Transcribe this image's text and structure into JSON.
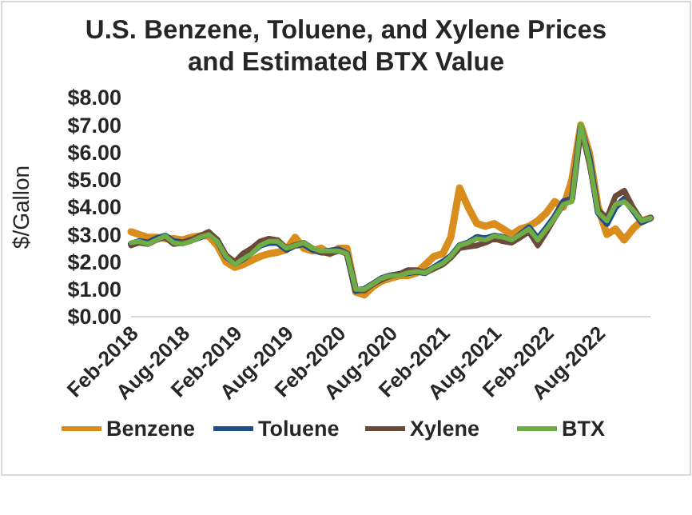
{
  "chart_data": {
    "type": "line",
    "title": "U.S. Benzene, Toluene, and Xylene Prices\nand Estimated BTX Value",
    "ylabel": "$/Gallon",
    "x": [
      "2018-02",
      "2018-03",
      "2018-04",
      "2018-05",
      "2018-06",
      "2018-07",
      "2018-08",
      "2018-09",
      "2018-10",
      "2018-11",
      "2018-12",
      "2019-01",
      "2019-02",
      "2019-03",
      "2019-04",
      "2019-05",
      "2019-06",
      "2019-07",
      "2019-08",
      "2019-09",
      "2019-10",
      "2019-11",
      "2019-12",
      "2020-01",
      "2020-02",
      "2020-03",
      "2020-04",
      "2020-05",
      "2020-06",
      "2020-07",
      "2020-08",
      "2020-09",
      "2020-10",
      "2020-11",
      "2020-12",
      "2021-01",
      "2021-02",
      "2021-03",
      "2021-04",
      "2021-05",
      "2021-06",
      "2021-07",
      "2021-08",
      "2021-09",
      "2021-10",
      "2021-11",
      "2021-12",
      "2022-01",
      "2022-02",
      "2022-03",
      "2022-04",
      "2022-05",
      "2022-06",
      "2022-07",
      "2022-08",
      "2022-09",
      "2022-10",
      "2022-11",
      "2022-12",
      "2023-01",
      "2023-02"
    ],
    "series": [
      {
        "name": "Benzene",
        "color": "#d98d1c",
        "values": [
          3.1,
          3.0,
          2.9,
          2.9,
          2.85,
          2.85,
          2.8,
          2.9,
          2.95,
          2.95,
          2.6,
          2.0,
          1.8,
          1.9,
          2.05,
          2.2,
          2.3,
          2.35,
          2.45,
          2.9,
          2.5,
          2.4,
          2.5,
          2.3,
          2.5,
          2.5,
          0.9,
          0.8,
          1.1,
          1.3,
          1.4,
          1.5,
          1.5,
          1.6,
          1.9,
          2.2,
          2.3,
          2.9,
          4.7,
          4.0,
          3.4,
          3.3,
          3.4,
          3.2,
          3.0,
          3.2,
          3.3,
          3.5,
          3.8,
          4.2,
          4.0,
          5.0,
          7.0,
          6.0,
          4.0,
          3.0,
          3.2,
          2.8,
          3.2,
          3.5,
          3.6
        ]
      },
      {
        "name": "Toluene",
        "color": "#1f4e8c",
        "values": [
          2.65,
          2.75,
          2.7,
          2.85,
          2.95,
          2.75,
          2.7,
          2.8,
          2.9,
          3.05,
          2.8,
          2.2,
          1.95,
          2.1,
          2.35,
          2.6,
          2.7,
          2.7,
          2.45,
          2.6,
          2.65,
          2.45,
          2.35,
          2.4,
          2.45,
          2.3,
          0.95,
          1.0,
          1.2,
          1.4,
          1.5,
          1.55,
          1.6,
          1.65,
          1.6,
          1.8,
          2.0,
          2.2,
          2.6,
          2.7,
          2.9,
          2.85,
          2.95,
          2.9,
          2.75,
          3.0,
          3.25,
          2.85,
          3.25,
          3.65,
          4.2,
          4.3,
          6.9,
          5.8,
          3.8,
          3.4,
          4.0,
          4.3,
          3.9,
          3.45,
          3.6
        ]
      },
      {
        "name": "Xylene",
        "color": "#6b4a3a",
        "values": [
          2.6,
          2.7,
          2.65,
          2.8,
          2.9,
          2.65,
          2.7,
          2.8,
          2.95,
          3.1,
          2.8,
          2.25,
          2.0,
          2.3,
          2.5,
          2.75,
          2.85,
          2.8,
          2.5,
          2.6,
          2.7,
          2.5,
          2.35,
          2.3,
          2.4,
          2.3,
          1.0,
          0.95,
          1.2,
          1.35,
          1.5,
          1.55,
          1.7,
          1.7,
          1.6,
          1.75,
          1.9,
          2.15,
          2.5,
          2.55,
          2.6,
          2.7,
          2.85,
          2.75,
          2.7,
          2.9,
          3.1,
          2.6,
          3.1,
          3.6,
          4.1,
          4.3,
          6.9,
          5.6,
          3.9,
          3.6,
          4.4,
          4.6,
          4.0,
          3.5,
          3.6
        ]
      },
      {
        "name": "BTX",
        "color": "#70ad47",
        "values": [
          2.7,
          2.75,
          2.65,
          2.8,
          2.95,
          2.7,
          2.65,
          2.75,
          2.9,
          3.0,
          2.75,
          2.2,
          1.9,
          2.1,
          2.3,
          2.6,
          2.75,
          2.75,
          2.5,
          2.6,
          2.7,
          2.5,
          2.4,
          2.4,
          2.4,
          2.3,
          1.0,
          1.0,
          1.2,
          1.4,
          1.5,
          1.5,
          1.6,
          1.65,
          1.6,
          1.8,
          1.95,
          2.2,
          2.6,
          2.7,
          2.85,
          2.8,
          2.95,
          2.9,
          2.8,
          3.0,
          3.2,
          2.8,
          3.2,
          3.6,
          4.1,
          4.2,
          7.0,
          5.7,
          3.8,
          3.5,
          4.1,
          4.2,
          3.9,
          3.5,
          3.6
        ]
      }
    ],
    "xlim": [
      "2018-02",
      "2023-02"
    ],
    "xticks": [
      {
        "value": "2018-02",
        "label": "Feb-2018"
      },
      {
        "value": "2018-08",
        "label": "Aug-2018"
      },
      {
        "value": "2019-02",
        "label": "Feb-2019"
      },
      {
        "value": "2019-08",
        "label": "Aug-2019"
      },
      {
        "value": "2020-02",
        "label": "Feb-2020"
      },
      {
        "value": "2020-08",
        "label": "Aug-2020"
      },
      {
        "value": "2021-02",
        "label": "Feb-2021"
      },
      {
        "value": "2021-08",
        "label": "Aug-2021"
      },
      {
        "value": "2022-02",
        "label": "Feb-2022"
      },
      {
        "value": "2022-08",
        "label": "Aug-2022"
      }
    ],
    "ylim": [
      0,
      8
    ],
    "yticks": [
      {
        "value": 0,
        "label": "$0.00"
      },
      {
        "value": 1,
        "label": "$1.00"
      },
      {
        "value": 2,
        "label": "$2.00"
      },
      {
        "value": 3,
        "label": "$3.00"
      },
      {
        "value": 4,
        "label": "$4.00"
      },
      {
        "value": 5,
        "label": "$5.00"
      },
      {
        "value": 6,
        "label": "$6.00"
      },
      {
        "value": 7,
        "label": "$7.00"
      },
      {
        "value": 8,
        "label": "$8.00"
      }
    ],
    "grid": false,
    "legend": "bottom",
    "marker": "none",
    "line_style": "solid"
  }
}
